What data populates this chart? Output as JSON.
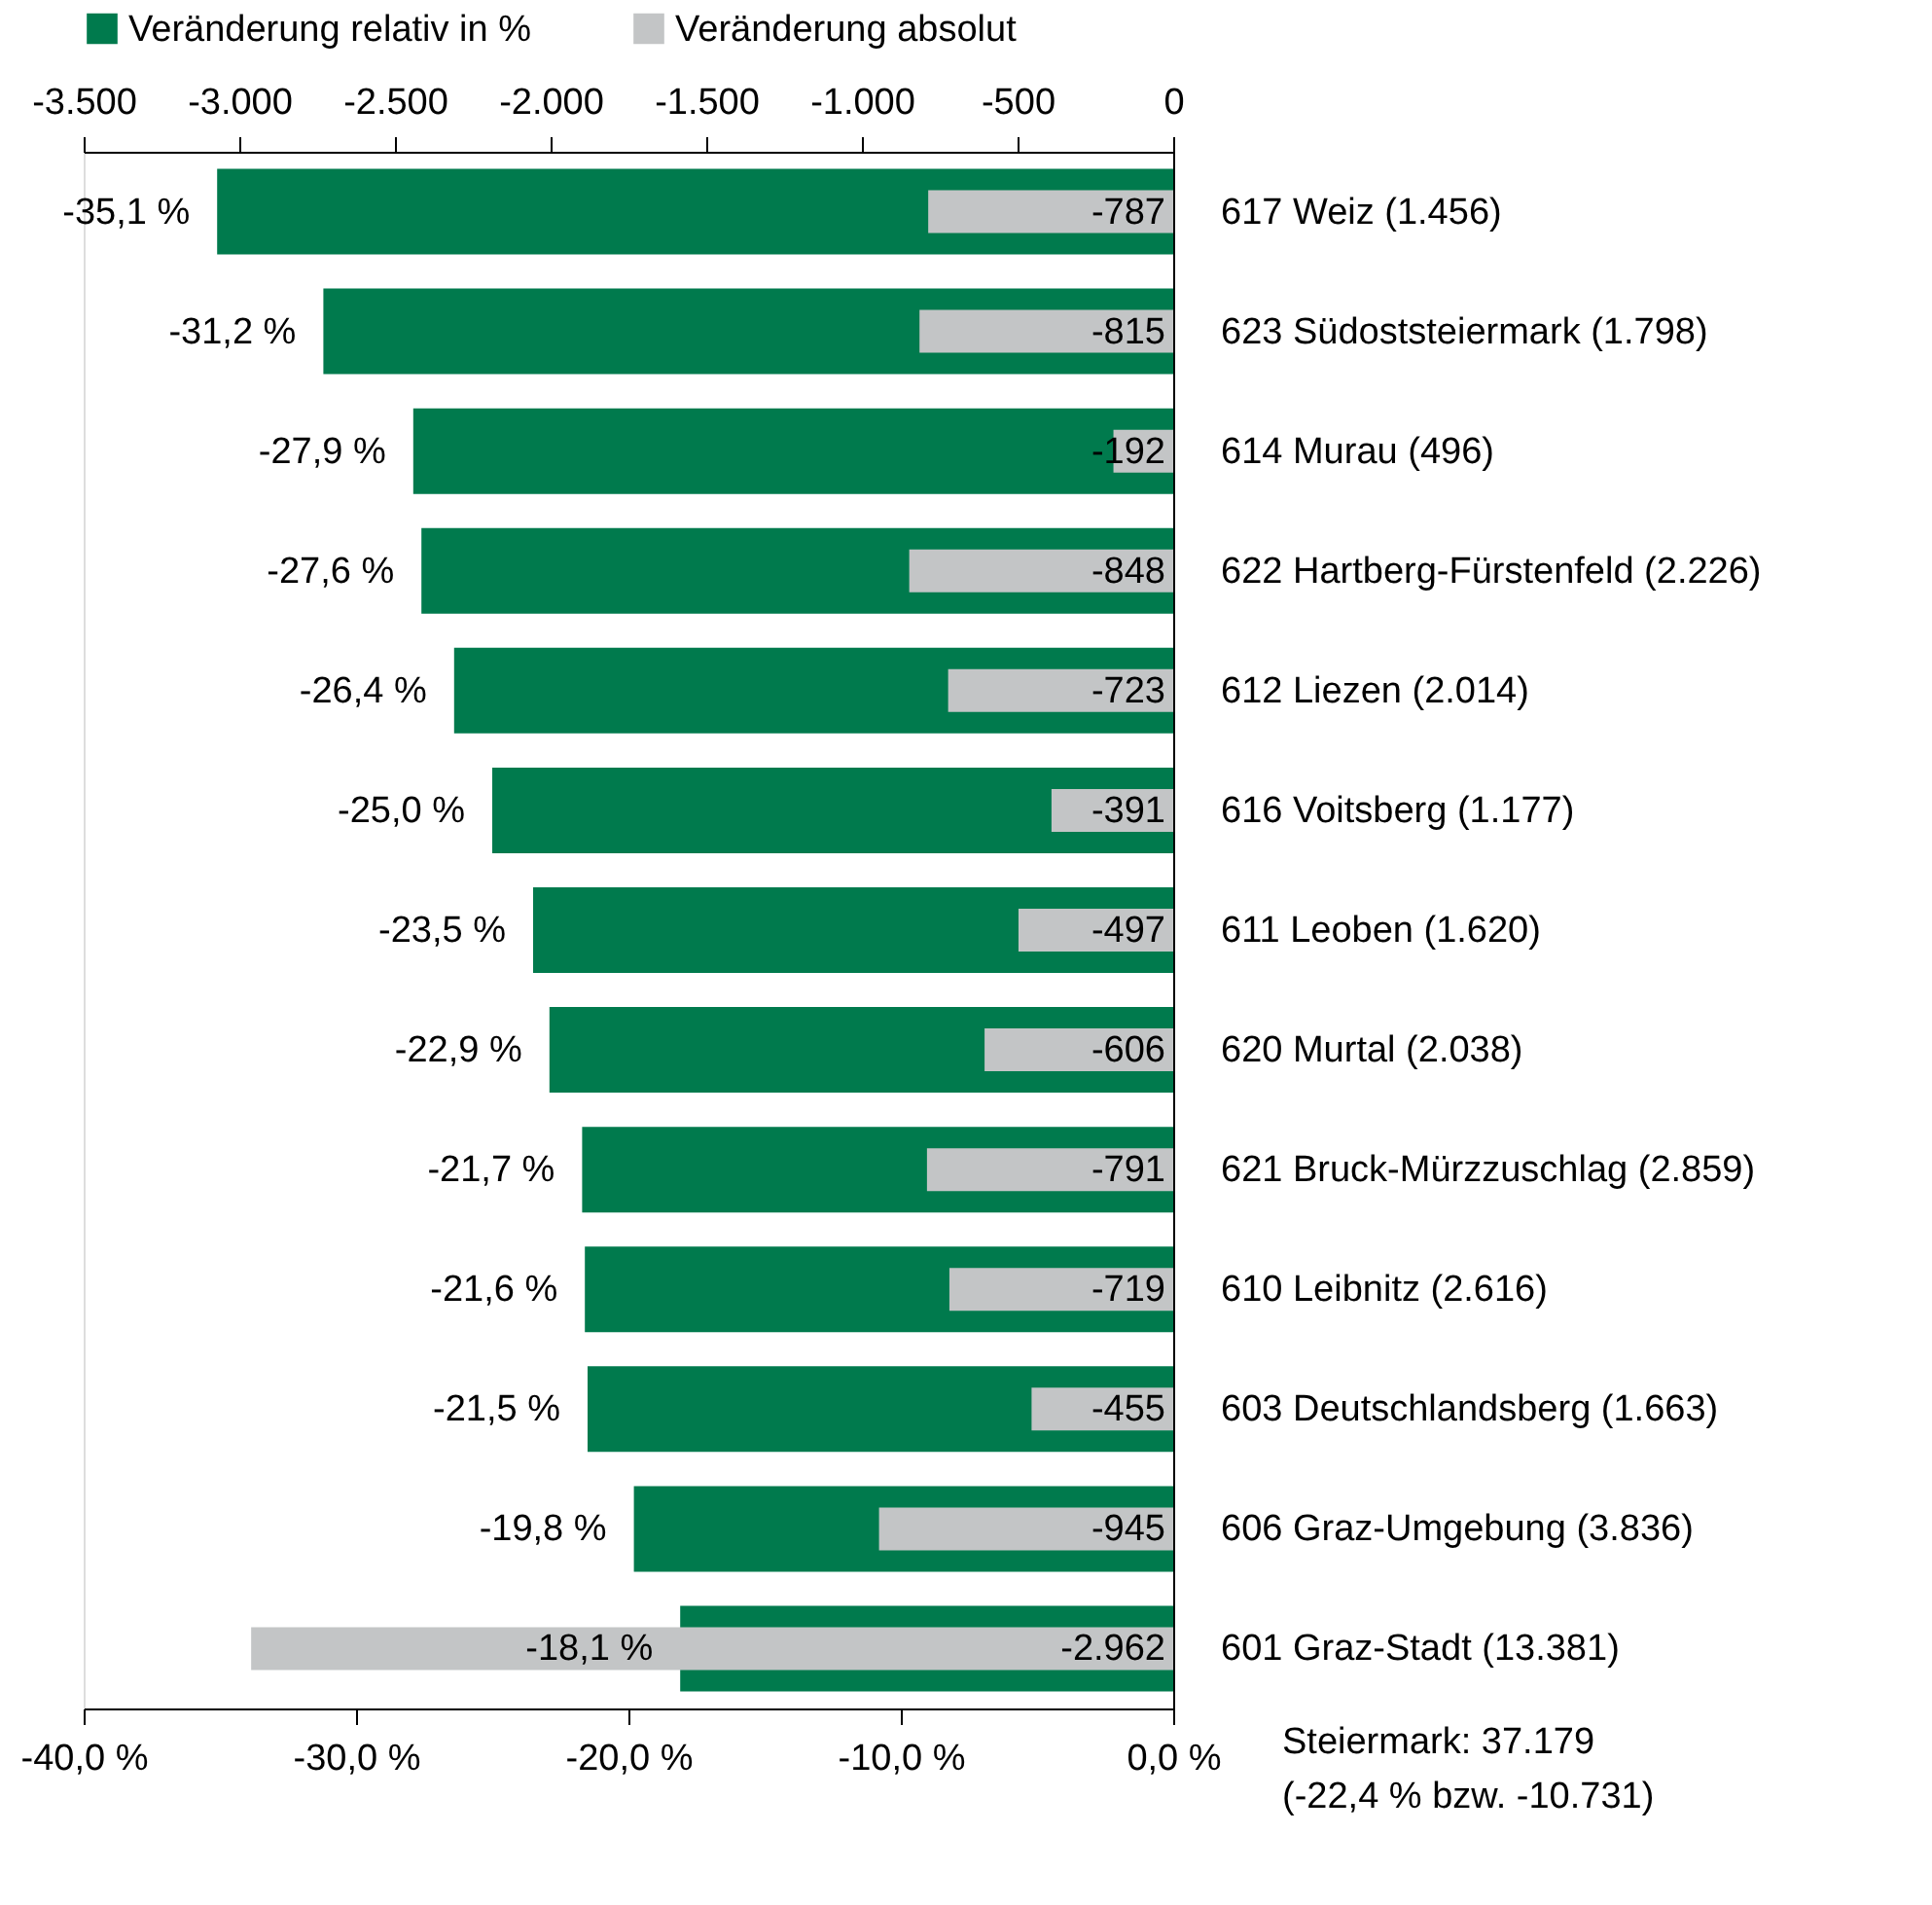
{
  "chart_data": {
    "type": "bar",
    "orientation": "horizontal",
    "legend": "top",
    "grid": false,
    "categories": [
      "617 Weiz (1.456)",
      "623 Südoststeiermark (1.798)",
      "614 Murau (496)",
      "622 Hartberg-Fürstenfeld (2.226)",
      "612 Liezen (2.014)",
      "616 Voitsberg (1.177)",
      "611 Leoben (1.620)",
      "620 Murtal (2.038)",
      "621 Bruck-Mürzzuschlag (2.859)",
      "610 Leibnitz (2.616)",
      "603 Deutschlandsberg (1.663)",
      "606 Graz-Umgebung (3.836)",
      "601 Graz-Stadt (13.381)"
    ],
    "series": [
      {
        "name": "Veränderung relativ in %",
        "color": "#007a4d",
        "values": [
          -35.1,
          -31.2,
          -27.9,
          -27.6,
          -26.4,
          -25.0,
          -23.5,
          -22.9,
          -21.7,
          -21.6,
          -21.5,
          -19.8,
          -18.1
        ],
        "value_labels": [
          "-35,1 %",
          "-31,2 %",
          "-27,9 %",
          "-27,6 %",
          "-26,4 %",
          "-25,0 %",
          "-23,5 %",
          "-22,9 %",
          "-21,7 %",
          "-21,6 %",
          "-21,5 %",
          "-19,8 %",
          "-18,1 %"
        ]
      },
      {
        "name": "Veränderung absolut",
        "color": "#c3c5c6",
        "axis": "x2",
        "values": [
          -787,
          -815,
          -192,
          -848,
          -723,
          -391,
          -497,
          -606,
          -791,
          -719,
          -455,
          -945,
          -2962
        ],
        "value_labels": [
          "-787",
          "-815",
          "-192",
          "-848",
          "-723",
          "-391",
          "-497",
          "-606",
          "-791",
          "-719",
          "-455",
          "-945",
          "-2.962"
        ]
      }
    ],
    "xlim": [
      -40,
      0
    ],
    "xticks": [
      {
        "value": -40,
        "label": "-40,0 %"
      },
      {
        "value": -30,
        "label": "-30,0 %"
      },
      {
        "value": -20,
        "label": "-20,0 %"
      },
      {
        "value": -10,
        "label": "-10,0 %"
      },
      {
        "value": 0,
        "label": "0,0 %"
      }
    ],
    "x2lim": [
      -3500,
      0
    ],
    "x2ticks": [
      {
        "value": -3500,
        "label": "-3.500"
      },
      {
        "value": -3000,
        "label": "-3.000"
      },
      {
        "value": -2500,
        "label": "-2.500"
      },
      {
        "value": -2000,
        "label": "-2.000"
      },
      {
        "value": -1500,
        "label": "-1.500"
      },
      {
        "value": -1000,
        "label": "-1.000"
      },
      {
        "value": -500,
        "label": "-500"
      },
      {
        "value": 0,
        "label": "0"
      }
    ],
    "annotations": [
      "Steiermark: 37.179",
      "(-22,4 % bzw. -10.731)"
    ]
  }
}
